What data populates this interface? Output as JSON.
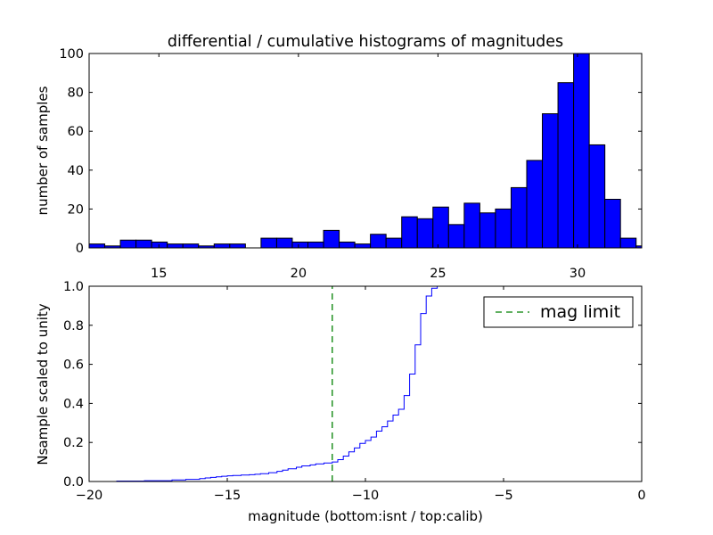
{
  "chart_data": [
    {
      "type": "bar",
      "title": "differential / cumulative histograms of magnitudes",
      "ylabel": "number of samples",
      "xlim": [
        12.5,
        32.3
      ],
      "ylim": [
        0,
        100
      ],
      "xticks": [
        15,
        20,
        25,
        30
      ],
      "yticks": [
        0,
        20,
        40,
        60,
        80,
        100
      ],
      "xtick_position": "bottom",
      "bar_color": "#0000ff",
      "edge_color": "#000000",
      "bin_edges": [
        12.5,
        13.06,
        13.62,
        14.18,
        14.74,
        15.3,
        15.86,
        16.42,
        16.98,
        17.54,
        18.1,
        18.66,
        19.22,
        19.78,
        20.34,
        20.9,
        21.46,
        22.02,
        22.58,
        23.14,
        23.7,
        24.26,
        24.82,
        25.38,
        25.94,
        26.5,
        27.06,
        27.62,
        28.18,
        28.74,
        29.3,
        29.86,
        30.42,
        30.98,
        31.54,
        32.1,
        32.66
      ],
      "values": [
        2,
        1,
        4,
        4,
        3,
        2,
        2,
        1,
        2,
        2,
        0,
        5,
        5,
        3,
        3,
        9,
        3,
        2,
        7,
        5,
        16,
        15,
        21,
        12,
        23,
        18,
        20,
        31,
        45,
        69,
        85,
        100,
        53,
        25,
        5,
        1
      ]
    },
    {
      "type": "line",
      "ylabel": "Nsample scaled to unity",
      "xlabel": "magnitude (bottom:isnt / top:calib)",
      "xlim": [
        -20,
        0
      ],
      "ylim": [
        0,
        1.0
      ],
      "xticks": [
        -20,
        -15,
        -10,
        -5,
        0
      ],
      "ytick_labels": [
        "0.0",
        "0.2",
        "0.4",
        "0.6",
        "0.8",
        "1.0"
      ],
      "series": [
        {
          "style": "step",
          "color": "#0000ff",
          "x": [
            -20.0,
            -19.0,
            -18.0,
            -17.0,
            -16.5,
            -16.0,
            -15.8,
            -15.6,
            -15.4,
            -15.2,
            -15.0,
            -14.8,
            -14.5,
            -14.2,
            -14.0,
            -13.8,
            -13.5,
            -13.2,
            -13.0,
            -12.8,
            -12.5,
            -12.3,
            -12.0,
            -11.8,
            -11.5,
            -11.2,
            -11.0,
            -10.8,
            -10.6,
            -10.4,
            -10.2,
            -10.0,
            -9.8,
            -9.6,
            -9.4,
            -9.2,
            -9.0,
            -8.8,
            -8.6,
            -8.4,
            -8.2,
            -8.0,
            -7.8,
            -7.6,
            -7.4,
            -7.2
          ],
          "y": [
            0.0,
            0.002,
            0.004,
            0.008,
            0.011,
            0.015,
            0.018,
            0.021,
            0.024,
            0.027,
            0.029,
            0.031,
            0.033,
            0.035,
            0.037,
            0.04,
            0.045,
            0.052,
            0.058,
            0.065,
            0.073,
            0.08,
            0.085,
            0.09,
            0.095,
            0.1,
            0.112,
            0.13,
            0.152,
            0.172,
            0.195,
            0.21,
            0.228,
            0.258,
            0.28,
            0.31,
            0.34,
            0.37,
            0.44,
            0.55,
            0.7,
            0.86,
            0.95,
            0.99,
            1.0,
            1.0
          ]
        },
        {
          "name": "mag limit",
          "style": "dashed",
          "color": "#008000",
          "x": [
            -11.2,
            -11.2
          ],
          "y": [
            0,
            1.0
          ]
        }
      ],
      "legend": {
        "position": "top-right",
        "entries": [
          "mag limit"
        ]
      }
    }
  ]
}
